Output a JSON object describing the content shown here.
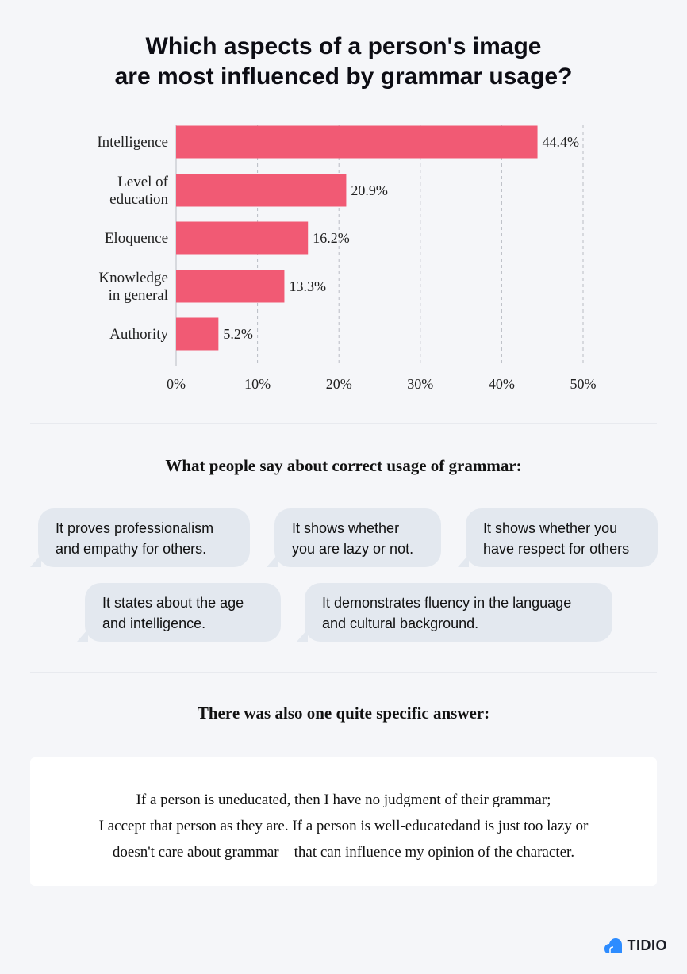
{
  "title": {
    "line1": "Which aspects of a person's image",
    "line2": "are most influenced by grammar usage?"
  },
  "chart_data": {
    "type": "bar",
    "orientation": "horizontal",
    "categories": [
      [
        "Intelligence"
      ],
      [
        "Level of",
        "education"
      ],
      [
        "Eloquence"
      ],
      [
        "Knowledge",
        "in general"
      ],
      [
        "Authority"
      ]
    ],
    "values": [
      44.4,
      20.9,
      16.2,
      13.3,
      5.2
    ],
    "value_labels": [
      "44.4%",
      "20.9%",
      "16.2%",
      "13.3%",
      "5.2%"
    ],
    "x_ticks": [
      0,
      10,
      20,
      30,
      40,
      50
    ],
    "x_tick_labels": [
      "0%",
      "10%",
      "20%",
      "30%",
      "40%",
      "50%"
    ],
    "xlim": [
      0,
      50
    ],
    "grid": "vertical dashed",
    "bar_color": "#f15a74"
  },
  "section1": {
    "heading": "What people say about correct usage of grammar:",
    "bubbles": [
      {
        "lines": [
          "It proves professionalism",
          "and empathy for others."
        ]
      },
      {
        "lines": [
          "It shows whether",
          "you are lazy or not."
        ]
      },
      {
        "lines": [
          "It  shows whether you",
          "have respect for others"
        ]
      },
      {
        "lines": [
          "It states about the age",
          "and intelligence."
        ]
      },
      {
        "lines": [
          "It demonstrates fluency in the language",
          "and cultural background."
        ]
      }
    ]
  },
  "section2": {
    "heading": "There was also one quite specific answer:",
    "quote_lines": [
      "If a person is uneducated, then I have no judgment of their grammar;",
      "I accept that person as they are. If a person is well-educatedand is just too lazy or",
      "doesn't care about grammar—that can influence my opinion of the character."
    ]
  },
  "logo": {
    "text": "TIDIO",
    "icon": "tidio-logo-icon",
    "color": "#2d8cff"
  }
}
